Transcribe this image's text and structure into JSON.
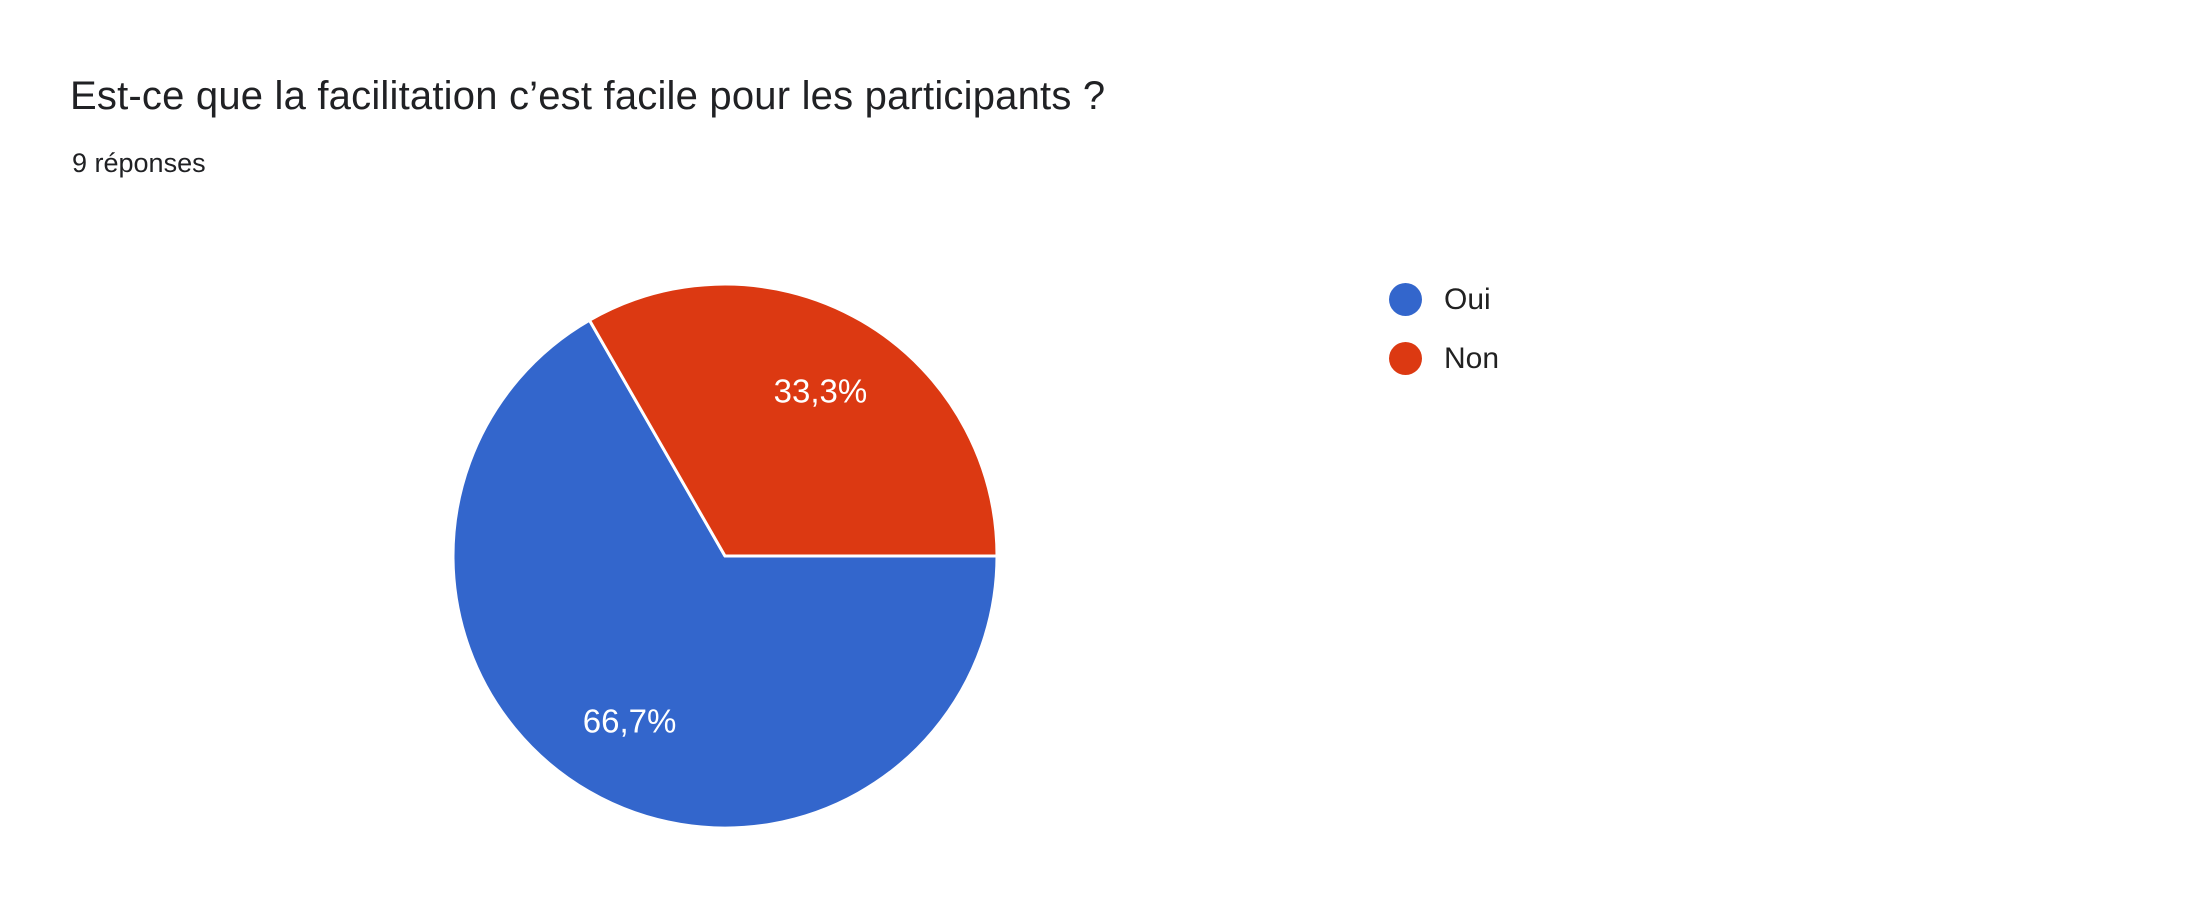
{
  "header": {
    "title": "Est-ce que la facilitation c’est facile pour les participants ?",
    "response_count": "9 réponses"
  },
  "chart_data": {
    "type": "pie",
    "title": "Est-ce que la facilitation c’est facile pour les participants ?",
    "subtitle": "9 réponses",
    "total_responses": 9,
    "categories": [
      "Oui",
      "Non"
    ],
    "values": [
      66.7,
      33.3
    ],
    "value_labels": [
      "66,7%",
      "33,3%"
    ],
    "colors": [
      "#3366CC",
      "#DC3912"
    ],
    "slice_label_color": "#ffffff",
    "separator_color": "#ffffff",
    "legend_position": "right",
    "start_angle_deg": 0,
    "direction": "clockwise"
  },
  "legend": {
    "items": [
      {
        "label": "Oui",
        "color": "#3366CC"
      },
      {
        "label": "Non",
        "color": "#DC3912"
      }
    ]
  }
}
